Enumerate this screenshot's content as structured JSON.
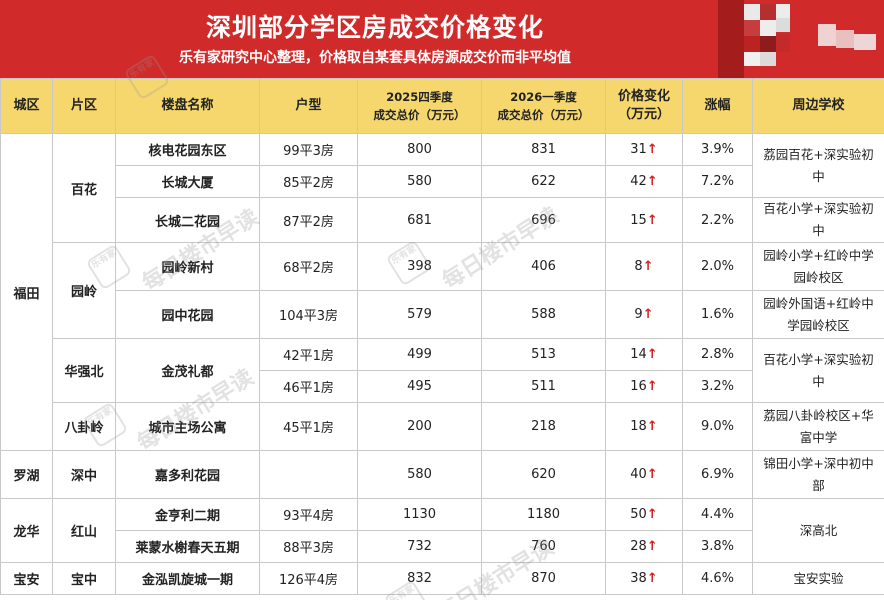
{
  "header": {
    "title": "深圳部分学区房成交价格变化",
    "subtitle": "乐有家研究中心整理，价格取自某套具体房源成交价而非平均值"
  },
  "table": {
    "columns": {
      "city": "城区",
      "area": "片区",
      "estate": "楼盘名称",
      "layout": "户型",
      "q4_line1": "2025四季度",
      "q4_line2": "成交总价（万元）",
      "q1_line1": "2026一季度",
      "q1_line2": "成交总价（万元）",
      "change_line1": "价格变化",
      "change_line2": "（万元）",
      "pct": "涨幅",
      "school": "周边学校"
    },
    "rows": [
      {
        "layout": "99平3房",
        "q4": "800",
        "q1": "831",
        "change": "31",
        "pct": "3.9%"
      },
      {
        "layout": "85平2房",
        "q4": "580",
        "q1": "622",
        "change": "42",
        "pct": "7.2%"
      },
      {
        "layout": "87平2房",
        "q4": "681",
        "q1": "696",
        "change": "15",
        "pct": "2.2%"
      },
      {
        "layout": "68平2房",
        "q4": "398",
        "q1": "406",
        "change": "8",
        "pct": "2.0%"
      },
      {
        "layout": "104平3房",
        "q4": "579",
        "q1": "588",
        "change": "9",
        "pct": "1.6%"
      },
      {
        "layout": "42平1房",
        "q4": "499",
        "q1": "513",
        "change": "14",
        "pct": "2.8%"
      },
      {
        "layout": "46平1房",
        "q4": "495",
        "q1": "511",
        "change": "16",
        "pct": "3.2%"
      },
      {
        "layout": "45平1房",
        "q4": "200",
        "q1": "218",
        "change": "18",
        "pct": "9.0%"
      },
      {
        "layout": "",
        "q4": "580",
        "q1": "620",
        "change": "40",
        "pct": "6.9%"
      },
      {
        "layout": "93平4房",
        "q4": "1130",
        "q1": "1180",
        "change": "50",
        "pct": "4.4%"
      },
      {
        "layout": "88平3房",
        "q4": "732",
        "q1": "760",
        "change": "28",
        "pct": "3.8%"
      },
      {
        "layout": "126平4房",
        "q4": "832",
        "q1": "870",
        "change": "38",
        "pct": "4.6%"
      }
    ],
    "estates": {
      "e0": "核电花园东区",
      "e1": "长城大厦",
      "e2": "长城二花园",
      "e3": "园岭新村",
      "e4": "园中花园",
      "e5": "金茂礼都",
      "e6": "城市主场公寓",
      "e7": "嘉多利花园",
      "e8": "金亨利二期",
      "e9": "莱蒙水榭春天五期",
      "e10": "金泓凯旋城一期"
    },
    "areas": {
      "baihua": "百花",
      "yuanling": "园岭",
      "huaqiangbei": "华强北",
      "bagualing": "八卦岭",
      "shenzhong": "深中",
      "hongshan": "红山",
      "baozhong": "宝中"
    },
    "cities": {
      "futian": "福田",
      "luohu": "罗湖",
      "longhua": "龙华",
      "baoan": "宝安"
    },
    "schools": {
      "s0": "荔园百花+深实验初中",
      "s1": "百花小学+深实验初中",
      "s2": "园岭小学+红岭中学园岭校区",
      "s3": "园岭外国语+红岭中学园岭校区",
      "s4": "百花小学+深实验初中",
      "s5": "荔园八卦岭校区+华富中学",
      "s6": "锦田小学+深中初中部",
      "s7": "深高北",
      "s8": "宝安实验"
    },
    "up_arrow": "↑"
  },
  "watermark": {
    "text": "每日楼市早读",
    "logo": "乐有家"
  },
  "colors": {
    "banner": "#d12a2a",
    "header_row": "#f5d76e",
    "arrow": "#d42020"
  }
}
